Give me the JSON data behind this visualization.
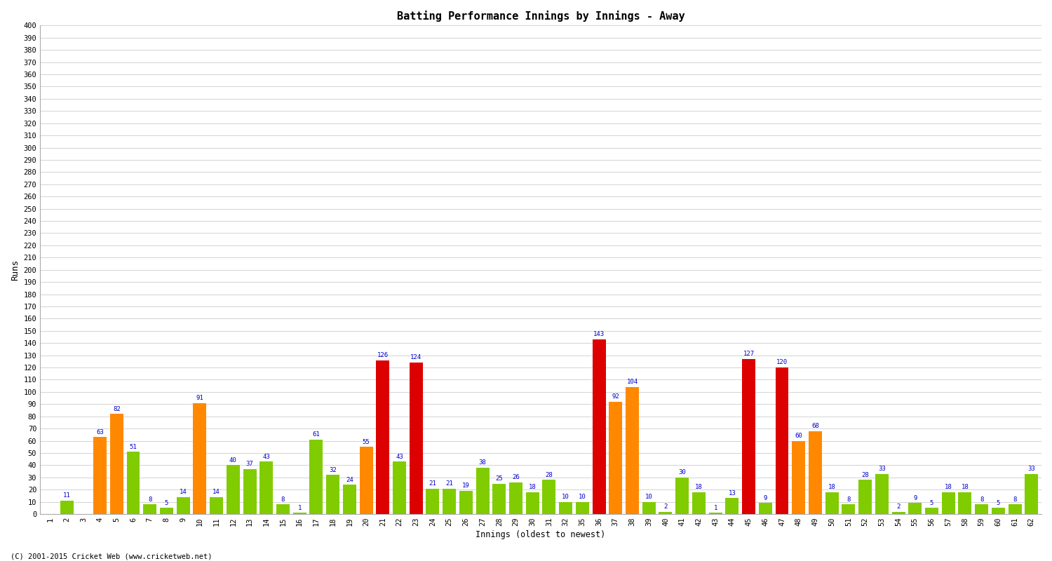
{
  "title": "Batting Performance Innings by Innings - Away",
  "xlabel": "Innings (oldest to newest)",
  "ylabel": "Runs",
  "innings_data": [
    [
      1,
      0,
      "green"
    ],
    [
      2,
      11,
      "green"
    ],
    [
      3,
      0,
      "green"
    ],
    [
      4,
      63,
      "orange"
    ],
    [
      5,
      82,
      "orange"
    ],
    [
      6,
      51,
      "green"
    ],
    [
      7,
      8,
      "green"
    ],
    [
      8,
      5,
      "green"
    ],
    [
      9,
      14,
      "green"
    ],
    [
      10,
      91,
      "orange"
    ],
    [
      11,
      14,
      "green"
    ],
    [
      12,
      40,
      "green"
    ],
    [
      13,
      37,
      "green"
    ],
    [
      14,
      43,
      "green"
    ],
    [
      15,
      8,
      "green"
    ],
    [
      16,
      1,
      "green"
    ],
    [
      17,
      61,
      "green"
    ],
    [
      18,
      32,
      "green"
    ],
    [
      19,
      24,
      "green"
    ],
    [
      20,
      55,
      "orange"
    ],
    [
      21,
      126,
      "red"
    ],
    [
      22,
      43,
      "green"
    ],
    [
      23,
      124,
      "red"
    ],
    [
      24,
      21,
      "green"
    ],
    [
      25,
      21,
      "green"
    ],
    [
      26,
      19,
      "green"
    ],
    [
      27,
      38,
      "green"
    ],
    [
      28,
      25,
      "green"
    ],
    [
      29,
      26,
      "green"
    ],
    [
      30,
      18,
      "green"
    ],
    [
      31,
      28,
      "green"
    ],
    [
      32,
      10,
      "green"
    ],
    [
      35,
      10,
      "green"
    ],
    [
      36,
      143,
      "red"
    ],
    [
      37,
      92,
      "orange"
    ],
    [
      38,
      104,
      "orange"
    ],
    [
      39,
      10,
      "green"
    ],
    [
      40,
      2,
      "green"
    ],
    [
      41,
      30,
      "green"
    ],
    [
      42,
      18,
      "green"
    ],
    [
      43,
      1,
      "green"
    ],
    [
      44,
      13,
      "green"
    ],
    [
      45,
      127,
      "red"
    ],
    [
      46,
      9,
      "green"
    ],
    [
      47,
      120,
      "red"
    ],
    [
      48,
      60,
      "orange"
    ],
    [
      49,
      68,
      "orange"
    ],
    [
      50,
      18,
      "green"
    ],
    [
      51,
      8,
      "green"
    ],
    [
      52,
      28,
      "green"
    ],
    [
      53,
      33,
      "green"
    ],
    [
      54,
      2,
      "green"
    ],
    [
      55,
      9,
      "green"
    ],
    [
      56,
      5,
      "green"
    ],
    [
      57,
      18,
      "green"
    ],
    [
      58,
      18,
      "green"
    ],
    [
      59,
      8,
      "green"
    ],
    [
      60,
      5,
      "green"
    ],
    [
      61,
      8,
      "green"
    ],
    [
      62,
      33,
      "green"
    ]
  ],
  "bar_color_green": "#80cc00",
  "bar_color_orange": "#ff8800",
  "bar_color_red": "#dd0000",
  "bg_color": "#ffffff",
  "plot_bg_color": "#ffffff",
  "grid_color": "#cccccc",
  "label_color": "#0000cc",
  "axis_label_color": "#000000",
  "tick_label_color": "#000000",
  "ylim_max": 400,
  "footer_text": "(C) 2001-2015 Cricket Web (www.cricketweb.net)"
}
